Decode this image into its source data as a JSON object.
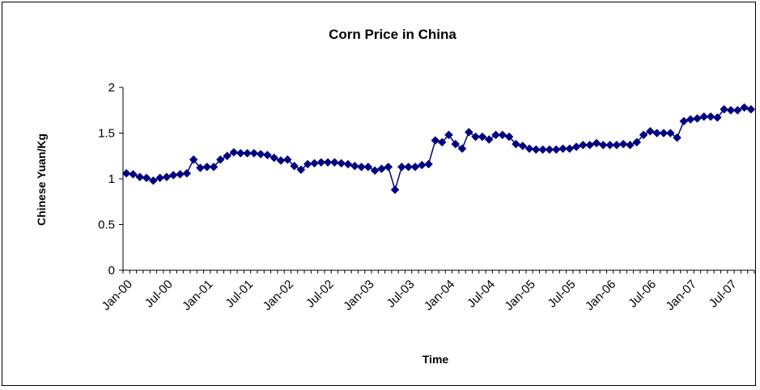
{
  "chart_data": {
    "type": "line",
    "title": "Corn Price in China",
    "xlabel": "Time",
    "ylabel": "Chinese Yuan/Kg",
    "ylim": [
      0,
      2
    ],
    "y_ticks": [
      "0",
      "0.5",
      "1",
      "1.5",
      "2"
    ],
    "x_ticks": [
      "Jan-00",
      "Jul-00",
      "Jan-01",
      "Jul-01",
      "Jan-02",
      "Jul-02",
      "Jan-03",
      "Jul-03",
      "Jan-04",
      "Jul-04",
      "Jan-05",
      "Jul-05",
      "Jan-06",
      "Jul-06",
      "Jan-07",
      "Jul-07"
    ],
    "grid": false,
    "legend": "none",
    "series": [
      {
        "color": "#000080",
        "marker": "diamond",
        "start": "Jan-00",
        "frequency": "monthly",
        "values": [
          1.06,
          1.05,
          1.02,
          1.01,
          0.98,
          1.01,
          1.02,
          1.04,
          1.05,
          1.06,
          1.21,
          1.12,
          1.13,
          1.13,
          1.21,
          1.25,
          1.29,
          1.28,
          1.28,
          1.28,
          1.27,
          1.26,
          1.23,
          1.2,
          1.21,
          1.14,
          1.1,
          1.16,
          1.17,
          1.18,
          1.18,
          1.18,
          1.17,
          1.16,
          1.14,
          1.13,
          1.13,
          1.09,
          1.11,
          1.13,
          0.88,
          1.13,
          1.13,
          1.13,
          1.15,
          1.16,
          1.42,
          1.4,
          1.48,
          1.38,
          1.33,
          1.51,
          1.46,
          1.46,
          1.43,
          1.48,
          1.48,
          1.46,
          1.38,
          1.36,
          1.33,
          1.32,
          1.32,
          1.32,
          1.32,
          1.33,
          1.33,
          1.35,
          1.37,
          1.37,
          1.39,
          1.37,
          1.37,
          1.37,
          1.38,
          1.37,
          1.4,
          1.48,
          1.52,
          1.5,
          1.5,
          1.5,
          1.45,
          1.63,
          1.65,
          1.66,
          1.68,
          1.68,
          1.67,
          1.76,
          1.75,
          1.75,
          1.78,
          1.76
        ]
      }
    ]
  }
}
